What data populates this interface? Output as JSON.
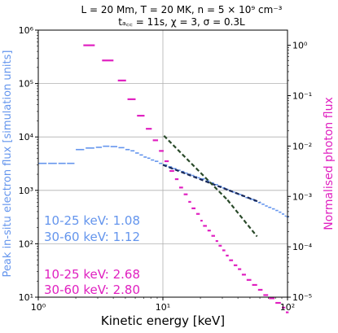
{
  "chart_data": {
    "type": "scatter",
    "title_line1": "L = 20 Mm, T = 20 MK, n = 5 × 10⁹ cm⁻³",
    "title_line2": "tₐ꜀꜀ = 11s, χ = 3, σ = 0.3L",
    "xlabel": "Kinetic energy [keV]",
    "ylabel_left": "Peak in-situ electron flux [simulation units]",
    "ylabel_right": "Normalised photon flux",
    "x_scale": "log",
    "xlim": [
      1,
      100
    ],
    "ylim_left": [
      10,
      1000000
    ],
    "ylim_right": [
      1e-05,
      2
    ],
    "x_ticks": [
      {
        "value": 1,
        "label": "10⁰"
      },
      {
        "value": 10,
        "label": "10¹"
      },
      {
        "value": 100,
        "label": "10²"
      }
    ],
    "y_left_ticks": [
      {
        "value": 10,
        "label": "10¹"
      },
      {
        "value": 100,
        "label": "10²"
      },
      {
        "value": 1000,
        "label": "10³"
      },
      {
        "value": 10000,
        "label": "10⁴"
      },
      {
        "value": 100000,
        "label": "10⁵"
      },
      {
        "value": 1000000,
        "label": "10⁶"
      }
    ],
    "y_right_ticks": [
      {
        "value": 1e-05,
        "label": "10⁻⁵"
      },
      {
        "value": 0.0001,
        "label": "10⁻⁴"
      },
      {
        "value": 0.001,
        "label": "10⁻³"
      },
      {
        "value": 0.01,
        "label": "10⁻²"
      },
      {
        "value": 0.1,
        "label": "10⁻¹"
      },
      {
        "value": 1,
        "label": "10⁰"
      }
    ],
    "grid": true,
    "series": [
      {
        "axis": "left",
        "color": "#6495ed",
        "points": [
          [
            1.0,
            3200
          ],
          [
            1.2,
            3200
          ],
          [
            1.45,
            3200
          ],
          [
            1.7,
            3200
          ],
          [
            2.0,
            5800
          ],
          [
            2.4,
            6200
          ],
          [
            2.9,
            6400
          ],
          [
            3.3,
            6700
          ],
          [
            3.8,
            6600
          ],
          [
            4.4,
            6300
          ],
          [
            5.0,
            5800
          ],
          [
            5.5,
            5500
          ],
          [
            6.0,
            5000
          ],
          [
            6.5,
            4600
          ],
          [
            7.0,
            4200
          ],
          [
            7.5,
            4000
          ],
          [
            8.0,
            3700
          ],
          [
            8.6,
            3500
          ],
          [
            9.3,
            3200
          ],
          [
            10.0,
            3000
          ],
          [
            11.0,
            2750
          ],
          [
            12.0,
            2550
          ],
          [
            13.0,
            2380
          ],
          [
            14.0,
            2250
          ],
          [
            15.0,
            2100
          ],
          [
            16.0,
            2000
          ],
          [
            17.0,
            1900
          ],
          [
            18.0,
            1800
          ],
          [
            19.0,
            1720
          ],
          [
            20.0,
            1640
          ],
          [
            22.0,
            1500
          ],
          [
            24.0,
            1380
          ],
          [
            26.0,
            1280
          ],
          [
            28.0,
            1190
          ],
          [
            30.0,
            1110
          ],
          [
            32.0,
            1040
          ],
          [
            34.0,
            980
          ],
          [
            36.0,
            930
          ],
          [
            38.0,
            880
          ],
          [
            40.0,
            840
          ],
          [
            43.0,
            780
          ],
          [
            46.0,
            730
          ],
          [
            50.0,
            680
          ],
          [
            54.0,
            630
          ],
          [
            58.0,
            590
          ],
          [
            62.0,
            550
          ],
          [
            66.0,
            510
          ],
          [
            70.0,
            480
          ],
          [
            75.0,
            450
          ],
          [
            80.0,
            420
          ],
          [
            85.0,
            390
          ],
          [
            90.0,
            360
          ],
          [
            95.0,
            330
          ],
          [
            98.0,
            320
          ]
        ]
      },
      {
        "axis": "right",
        "color": "#e020c0",
        "points": [
          [
            2.3,
            1.0
          ],
          [
            3.25,
            0.5
          ],
          [
            4.35,
            0.2
          ],
          [
            5.2,
            0.085
          ],
          [
            6.2,
            0.04
          ],
          [
            7.3,
            0.022
          ],
          [
            8.3,
            0.013
          ],
          [
            9.3,
            0.008
          ],
          [
            10.3,
            0.005
          ],
          [
            11.3,
            0.0032
          ],
          [
            12.5,
            0.0022
          ],
          [
            13.5,
            0.0015
          ],
          [
            14.7,
            0.0011
          ],
          [
            16.0,
            0.00078
          ],
          [
            17.0,
            0.00058
          ],
          [
            18.5,
            0.00045
          ],
          [
            20.0,
            0.00033
          ],
          [
            21.0,
            0.00026
          ],
          [
            22.8,
            0.00021
          ],
          [
            24.5,
            0.000165
          ],
          [
            26.5,
            0.00013
          ],
          [
            28.0,
            0.000105
          ],
          [
            30.0,
            8.5e-05
          ],
          [
            32.0,
            6.7e-05
          ],
          [
            34.0,
            5.4e-05
          ],
          [
            37.0,
            4.3e-05
          ],
          [
            40.0,
            3.6e-05
          ],
          [
            43.0,
            2.8e-05
          ],
          [
            47.0,
            2.2e-05
          ],
          [
            52.0,
            1.75e-05
          ],
          [
            58.0,
            1.4e-05
          ],
          [
            64.0,
            1.1e-05
          ],
          [
            71.0,
            9.5e-06
          ],
          [
            80.0,
            7.7e-06
          ],
          [
            90.0,
            6.2e-06
          ],
          [
            97.0,
            5e-06
          ]
        ]
      }
    ],
    "fits": [
      {
        "axis": "left",
        "color": "#1a2a5a",
        "x": [
          10,
          34
        ],
        "y": [
          3000,
          1000
        ]
      },
      {
        "axis": "left",
        "color": "#1a2a5a",
        "x": [
          34,
          60
        ],
        "y": [
          1000,
          600
        ]
      },
      {
        "axis": "right",
        "color": "#2a4a2a",
        "x": [
          10.2,
          33
        ],
        "y": [
          0.016,
          0.00085
        ]
      },
      {
        "axis": "right",
        "color": "#2a4a2a",
        "x": [
          33,
          57
        ],
        "y": [
          0.00085,
          0.00016
        ]
      }
    ],
    "annotations": [
      {
        "text": "10-25 keV: 1.08",
        "color": "#6495ed"
      },
      {
        "text": "30-60 keV: 1.12",
        "color": "#6495ed"
      },
      {
        "text": "10-25 keV: 2.68",
        "color": "#e020c0"
      },
      {
        "text": "30-60 keV: 2.80",
        "color": "#e020c0"
      }
    ]
  }
}
